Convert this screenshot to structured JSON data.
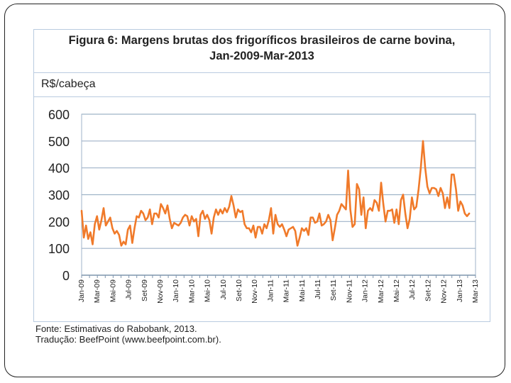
{
  "figure": {
    "title_line1": "Figura 6: Margens brutas dos frigoríficos brasileiros de carne bovina,",
    "title_line2": "Jan-2009-Mar-2013",
    "unit": "R$/cabeça"
  },
  "source": {
    "line1": "Fonte: Estimativas do Rabobank, 2013.",
    "line2": "Tradução: BeefPoint (www.beefpoint.com.br)."
  },
  "chart_data": {
    "type": "line",
    "title": "Figura 6: Margens brutas dos frigoríficos brasileiros de carne bovina, Jan-2009-Mar-2013",
    "ylabel": "R$/cabeça",
    "xlabel": "",
    "ylim": [
      0,
      600
    ],
    "yticks": [
      0,
      100,
      200,
      300,
      400,
      500,
      600
    ],
    "grid": true,
    "line_color": "#f07a2a",
    "grid_color": "#9fb3c8",
    "x_ticks": [
      "Jan-09",
      "Mar-09",
      "Mai-09",
      "Jul-09",
      "Set-09",
      "Nov-09",
      "Jan-10",
      "Mar-10",
      "Mai-10",
      "Jul-10",
      "Set-10",
      "Nov-10",
      "Jan-11",
      "Mar-11",
      "Mai-11",
      "Jul-11",
      "Set-11",
      "Nov-11",
      "Jan-12",
      "Mar-12",
      "Mai-12",
      "Jul-12",
      "Set-12",
      "Nov-12",
      "Jan-13",
      "Mar-13"
    ],
    "x_start": "2009-01",
    "points_per_month": 4,
    "series": [
      {
        "values": [
          240,
          140,
          185,
          135,
          160,
          115,
          190,
          220,
          170,
          205,
          250,
          185,
          200,
          215,
          175,
          155,
          165,
          150,
          110,
          125,
          115,
          170,
          185,
          120,
          175,
          220,
          215,
          240,
          230,
          205,
          215,
          245,
          190,
          230,
          230,
          215,
          265,
          250,
          230,
          260,
          210,
          175,
          195,
          190,
          185,
          195,
          215,
          225,
          220,
          185,
          220,
          200,
          210,
          145,
          225,
          240,
          210,
          225,
          205,
          155,
          215,
          245,
          225,
          245,
          230,
          250,
          235,
          255,
          295,
          260,
          215,
          245,
          235,
          240,
          190,
          175,
          175,
          160,
          185,
          140,
          180,
          180,
          155,
          190,
          175,
          205,
          250,
          155,
          225,
          190,
          180,
          190,
          170,
          145,
          170,
          175,
          180,
          165,
          110,
          140,
          175,
          165,
          175,
          150,
          215,
          215,
          195,
          200,
          230,
          185,
          190,
          200,
          225,
          205,
          130,
          175,
          225,
          240,
          265,
          255,
          245,
          390,
          245,
          180,
          190,
          340,
          320,
          225,
          290,
          175,
          240,
          250,
          240,
          280,
          270,
          240,
          345,
          265,
          200,
          240,
          240,
          245,
          195,
          245,
          190,
          280,
          300,
          230,
          175,
          210,
          290,
          245,
          255,
          320,
          400,
          500,
          400,
          330,
          305,
          325,
          325,
          320,
          295,
          325,
          305,
          250,
          290,
          250,
          375,
          375,
          320,
          240,
          275,
          260,
          230,
          220,
          230
        ]
      }
    ]
  }
}
